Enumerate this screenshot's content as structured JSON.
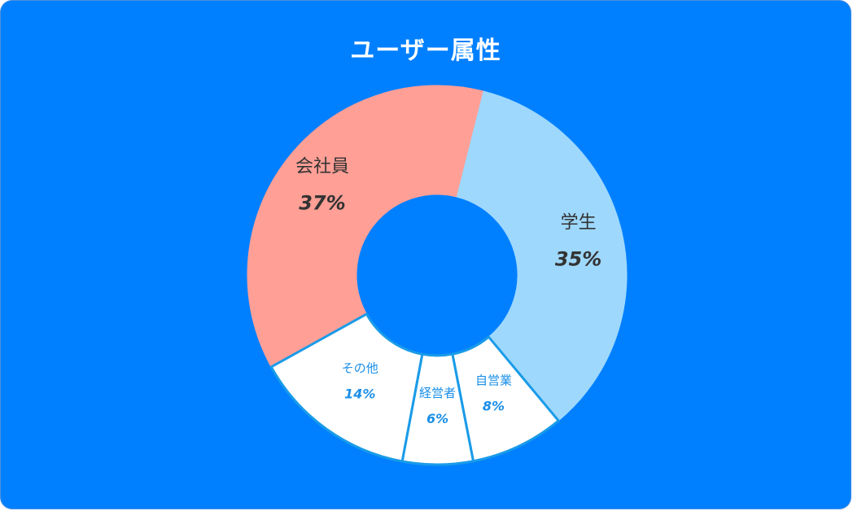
{
  "colors": {
    "background": "#0080ff",
    "title": "#ffffff",
    "white_slice_text": "#1a8fe8",
    "dark_slice_text": "#333333"
  },
  "chart_data": {
    "type": "pie",
    "title": "ユーザー属性",
    "donut": true,
    "slices": [
      {
        "label": "会社員",
        "value": 37,
        "display": "37%",
        "color": "#ff9f96"
      },
      {
        "label": "学生",
        "value": 35,
        "display": "35%",
        "color": "#9ed8fd"
      },
      {
        "label": "自営業",
        "value": 8,
        "display": "8%",
        "color": "#ffffff"
      },
      {
        "label": "経営者",
        "value": 6,
        "display": "6%",
        "color": "#ffffff"
      },
      {
        "label": "その他",
        "value": 14,
        "display": "14%",
        "color": "#ffffff"
      }
    ]
  }
}
